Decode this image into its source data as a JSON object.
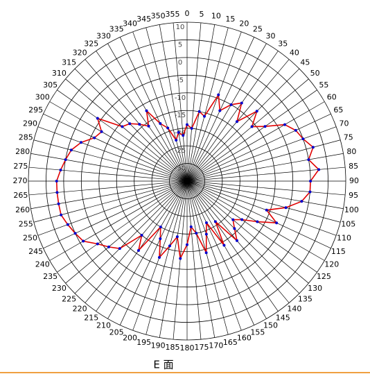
{
  "chart_data": {
    "type": "polar",
    "title": "E 面",
    "theta": [
      0,
      5,
      10,
      15,
      20,
      25,
      30,
      35,
      40,
      45,
      50,
      55,
      60,
      65,
      70,
      75,
      80,
      85,
      90,
      95,
      100,
      105,
      110,
      115,
      120,
      125,
      130,
      135,
      140,
      145,
      150,
      155,
      160,
      165,
      170,
      175,
      180,
      185,
      190,
      195,
      200,
      205,
      210,
      215,
      220,
      225,
      230,
      235,
      240,
      245,
      250,
      255,
      260,
      265,
      270,
      275,
      280,
      285,
      290,
      295,
      300,
      305,
      310,
      315,
      320,
      325,
      330,
      335,
      340,
      345,
      350,
      355
    ],
    "series": [
      {
        "color": "#e00000",
        "marker_color": "#0000cc",
        "values": [
          -19,
          -20,
          -15,
          -16,
          -9,
          -13,
          -10,
          -8,
          -13,
          -7,
          -11,
          -8,
          -3,
          -1,
          0,
          2,
          0,
          2.5,
          0,
          0,
          -2,
          -6,
          -11,
          -7,
          -12,
          -16,
          -18,
          -16,
          -13,
          -21,
          -14,
          -22,
          -19,
          -14,
          -20,
          -22,
          -17,
          -13,
          -19,
          -16,
          -12,
          -17,
          -20,
          -11,
          -15,
          -8,
          -6,
          -4,
          -1,
          0,
          1,
          2,
          2,
          2,
          2,
          1,
          0,
          -1,
          -3,
          -6,
          -7,
          -4,
          -11,
          -12,
          -14,
          -16,
          -12,
          -17,
          -19,
          -23,
          -21,
          -22
        ]
      }
    ],
    "rlim": [
      -35,
      10
    ],
    "rticks": [
      -35,
      -30,
      -25,
      -20,
      -15,
      -10,
      -5,
      0,
      5,
      10
    ],
    "grid": true
  }
}
